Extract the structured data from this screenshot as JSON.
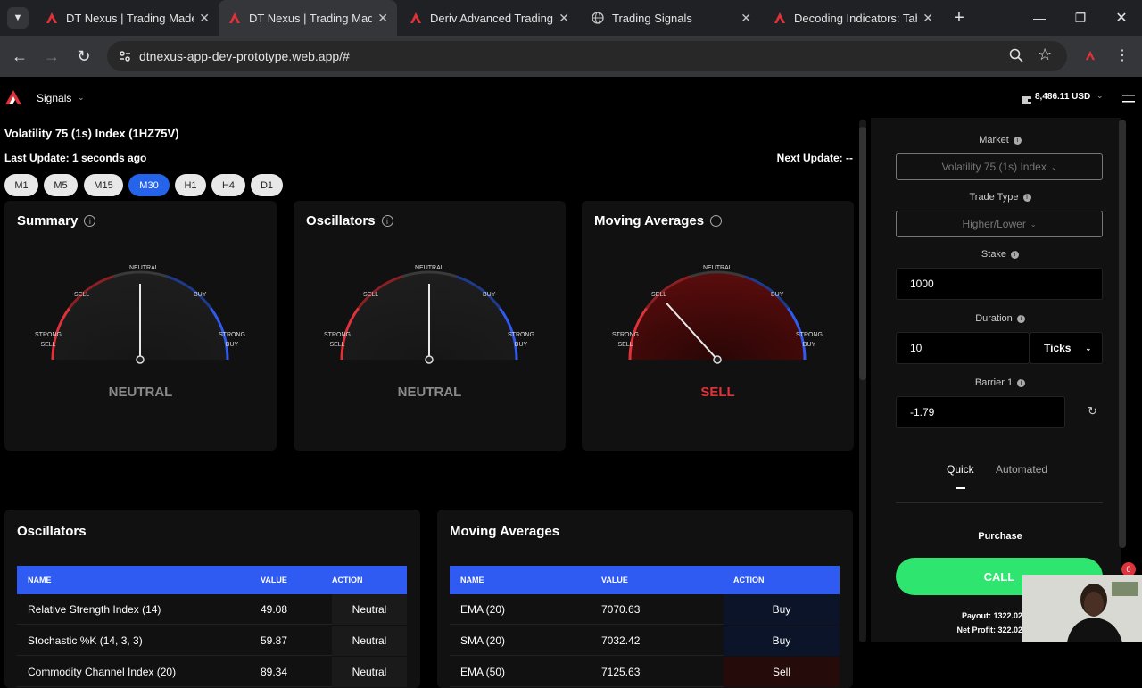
{
  "browser": {
    "tabs": [
      {
        "title": "DT Nexus | Trading Made",
        "icon": "dt-nexus-logo-icon",
        "active": false
      },
      {
        "title": "DT Nexus | Trading Made",
        "icon": "dt-nexus-logo-icon",
        "active": true
      },
      {
        "title": "Deriv Advanced Trading C",
        "icon": "deriv-logo-icon",
        "active": false
      },
      {
        "title": "Trading Signals",
        "icon": "globe-icon",
        "active": false
      },
      {
        "title": "Decoding Indicators: Tabl",
        "icon": "dt-nexus-logo-icon",
        "active": false
      }
    ],
    "url": "dtnexus-app-dev-prototype.web.app/#"
  },
  "app": {
    "nav_label": "Signals",
    "balance": "8,486.11 USD",
    "symbol_title": "Volatility 75 (1s) Index (1HZ75V)",
    "last_update": "Last Update: 1 seconds ago",
    "next_update": "Next Update: --",
    "timeframes": [
      "M1",
      "M5",
      "M15",
      "M30",
      "H1",
      "H4",
      "D1"
    ],
    "active_timeframe": "M30",
    "gauges": [
      {
        "title": "Summary",
        "verdict": "NEUTRAL",
        "verdict_color": "#8a8a8a"
      },
      {
        "title": "Oscillators",
        "verdict": "NEUTRAL",
        "verdict_color": "#8a8a8a"
      },
      {
        "title": "Moving Averages",
        "verdict": "SELL",
        "verdict_color": "#e0323a"
      }
    ],
    "gauge_labels": {
      "neutral": "NEUTRAL",
      "sell": "SELL",
      "buy": "BUY",
      "strong_sell": "STRONG SELL",
      "strong_buy": "STRONG BUY"
    },
    "oscillators_table": {
      "title": "Oscillators",
      "headers": [
        "NAME",
        "VALUE",
        "ACTION"
      ],
      "rows": [
        {
          "name": "Relative Strength Index (14)",
          "value": "49.08",
          "action": "Neutral"
        },
        {
          "name": "Stochastic %K (14, 3, 3)",
          "value": "59.87",
          "action": "Neutral"
        },
        {
          "name": "Commodity Channel Index (20)",
          "value": "89.34",
          "action": "Neutral"
        }
      ]
    },
    "ma_table": {
      "title": "Moving Averages",
      "headers": [
        "NAME",
        "VALUE",
        "ACTION"
      ],
      "rows": [
        {
          "name": "EMA (20)",
          "value": "7070.63",
          "action": "Buy"
        },
        {
          "name": "SMA (20)",
          "value": "7032.42",
          "action": "Buy"
        },
        {
          "name": "EMA (50)",
          "value": "7125.63",
          "action": "Sell"
        }
      ]
    },
    "trade_panel": {
      "market_label": "Market",
      "market_value": "Volatility 75 (1s) Index",
      "trade_type_label": "Trade Type",
      "trade_type_value": "Higher/Lower",
      "stake_label": "Stake",
      "stake_value": "1000",
      "duration_label": "Duration",
      "duration_value": "10",
      "duration_unit": "Ticks",
      "barrier_label": "Barrier 1",
      "barrier_value": "-1.79",
      "tab_quick": "Quick",
      "tab_automated": "Automated",
      "purchase_label": "Purchase",
      "call_label": "CALL",
      "payout_text": "Payout: 1322.02",
      "net_profit_text": "Net Profit: 322.02"
    },
    "notification_count": "0",
    "colors": {
      "accent": "#2563eb",
      "call": "#2ee66f",
      "sell": "#e0323a",
      "buy": "#2f5bf3"
    }
  }
}
